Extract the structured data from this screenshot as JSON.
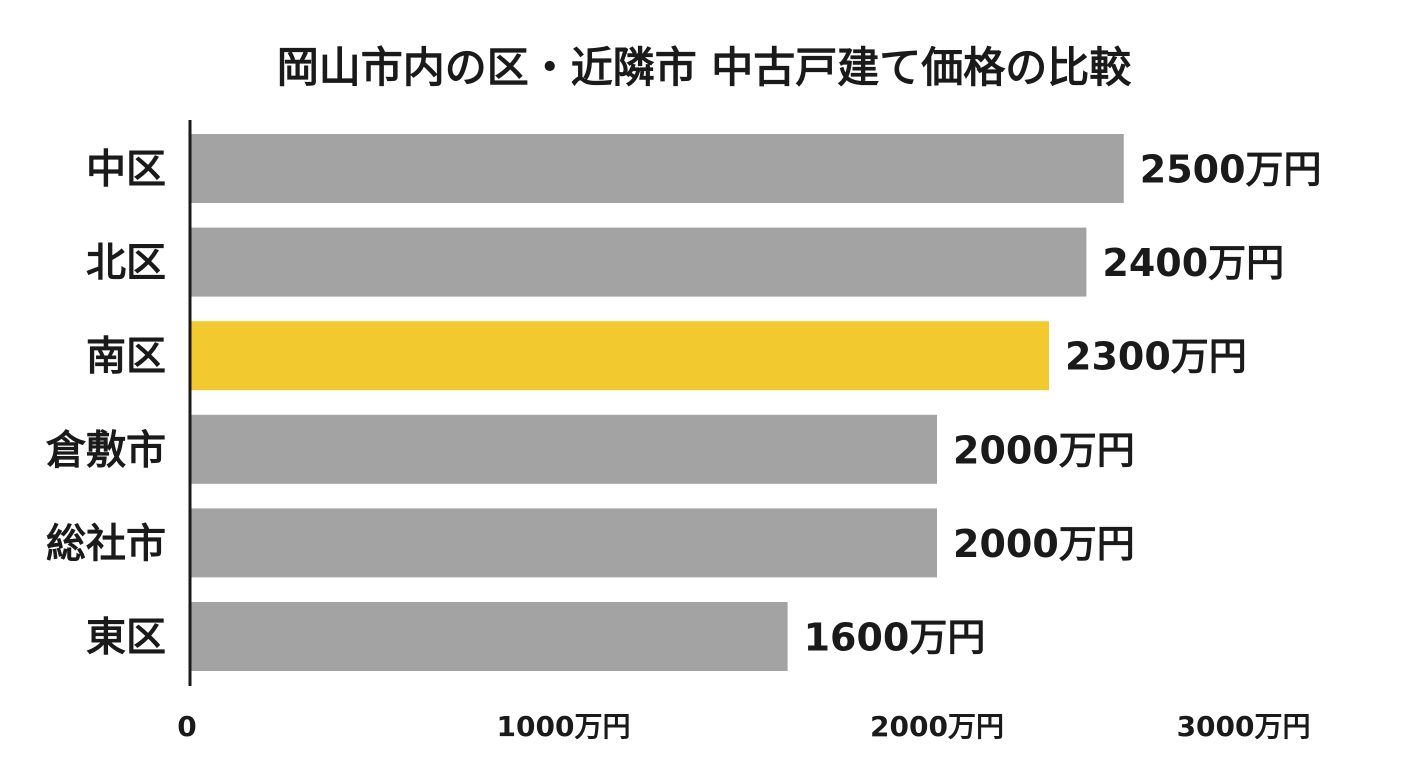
{
  "chart_data": {
    "type": "bar",
    "orientation": "horizontal",
    "title": "岡山市内の区・近隣市 中古戸建て価格の比較",
    "categories": [
      "中区",
      "北区",
      "南区",
      "倉敷市",
      "総社市",
      "東区"
    ],
    "values": [
      2500,
      2400,
      2300,
      2000,
      2000,
      1600
    ],
    "value_labels": [
      "2500万円",
      "2400万円",
      "2300万円",
      "2000万円",
      "2000万円",
      "1600万円"
    ],
    "xlim": [
      0,
      3000
    ],
    "x_ticks": [
      0,
      1000,
      2000,
      3000
    ],
    "x_tick_labels": [
      "0",
      "1000万円",
      "2000万円",
      "3000万円"
    ],
    "bar_color": "#a3a3a3",
    "highlight_color": "#f2ca30",
    "highlight_category": "南区",
    "grid": false,
    "legend": "none"
  }
}
